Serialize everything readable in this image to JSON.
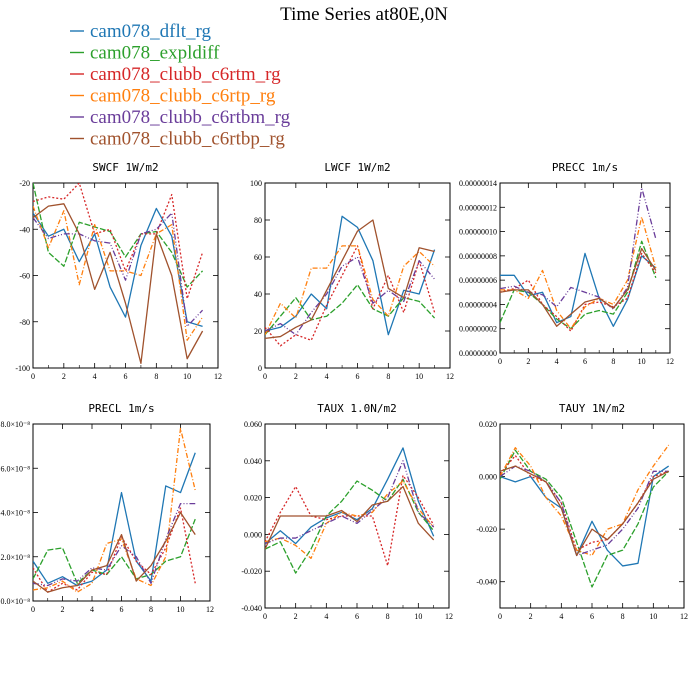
{
  "title": "Time Series at80E,0N",
  "legend": [
    {
      "label": "cam078_dflt_rg",
      "color": "#1f77b4"
    },
    {
      "label": "cam078_expldiff",
      "color": "#2ca02c"
    },
    {
      "label": "cam078_clubb_c6rtm_rg",
      "color": "#d62728"
    },
    {
      "label": "cam078_clubb_c6rtp_rg",
      "color": "#ff7f0e"
    },
    {
      "label": "cam078_clubb_c6rtbm_rg",
      "color": "#6a3d9a"
    },
    {
      "label": "cam078_clubb_c6rtbp_rg",
      "color": "#a0522d"
    }
  ],
  "chart_data": [
    {
      "type": "line",
      "title": "SWCF  1W/m2",
      "x": [
        0,
        1,
        2,
        3,
        4,
        5,
        6,
        7,
        8,
        9,
        10,
        11
      ],
      "xlim": [
        0,
        12
      ],
      "xticks": [
        0,
        2,
        4,
        6,
        8,
        10,
        12
      ],
      "ylim": [
        -100,
        -20
      ],
      "yticks": [
        -100,
        -80,
        -60,
        -40,
        -20
      ],
      "yticklabels": [
        "-100",
        "-80",
        "-60",
        "-40",
        "-20"
      ],
      "series": [
        {
          "values": [
            -33,
            -43,
            -40,
            -54,
            -42,
            -65,
            -78,
            -47,
            -31,
            -43,
            -80,
            -82
          ]
        },
        {
          "values": [
            -20,
            -50,
            -56,
            -37,
            -39,
            -41,
            -52,
            -42,
            -41,
            -50,
            -65,
            -58
          ]
        },
        {
          "values": [
            -28,
            -26,
            -27,
            -20,
            -42,
            -40,
            -58,
            -42,
            -42,
            -25,
            -70,
            -50
          ]
        },
        {
          "values": [
            -30,
            -48,
            -32,
            -64,
            -38,
            -58,
            -58,
            -60,
            -42,
            -38,
            -88,
            -78
          ]
        },
        {
          "values": [
            -35,
            -44,
            -42,
            -42,
            -45,
            -46,
            -62,
            -42,
            -40,
            -33,
            -82,
            -75
          ]
        },
        {
          "values": [
            -35,
            -30,
            -29,
            -42,
            -66,
            -50,
            -72,
            -98,
            -42,
            -60,
            -96,
            -84
          ]
        }
      ]
    },
    {
      "type": "line",
      "title": "LWCF  1W/m2",
      "x": [
        0,
        1,
        2,
        3,
        4,
        5,
        6,
        7,
        8,
        9,
        10,
        11
      ],
      "xlim": [
        0,
        12
      ],
      "xticks": [
        0,
        2,
        4,
        6,
        8,
        10,
        12
      ],
      "ylim": [
        0,
        100
      ],
      "yticks": [
        0,
        20,
        40,
        60,
        80,
        100
      ],
      "yticklabels": [
        "0",
        "20",
        "40",
        "60",
        "80",
        "100"
      ],
      "series": [
        {
          "values": [
            20,
            22,
            28,
            40,
            32,
            82,
            76,
            58,
            18,
            42,
            40,
            64
          ]
        },
        {
          "values": [
            18,
            28,
            38,
            26,
            28,
            35,
            45,
            32,
            28,
            38,
            36,
            27
          ]
        },
        {
          "values": [
            22,
            12,
            18,
            15,
            34,
            50,
            66,
            32,
            50,
            30,
            58,
            30
          ]
        },
        {
          "values": [
            18,
            35,
            27,
            54,
            54,
            66,
            66,
            37,
            28,
            55,
            63,
            55
          ]
        },
        {
          "values": [
            20,
            24,
            18,
            30,
            40,
            55,
            60,
            35,
            42,
            36,
            58,
            48
          ]
        },
        {
          "values": [
            16,
            17,
            22,
            26,
            42,
            58,
            74,
            80,
            43,
            38,
            65,
            63
          ]
        }
      ]
    },
    {
      "type": "line",
      "title": "PRECC  1m/s",
      "x": [
        0,
        1,
        2,
        3,
        4,
        5,
        6,
        7,
        8,
        9,
        10,
        11
      ],
      "xlim": [
        0,
        12
      ],
      "xticks": [
        0,
        2,
        4,
        6,
        8,
        10,
        12
      ],
      "ylim": [
        0,
        1.4e-07
      ],
      "yticks": [
        0,
        2e-08,
        4e-08,
        6e-08,
        8e-08,
        1e-07,
        1.2e-07,
        1.4e-07
      ],
      "yticklabels": [
        "0.00000000",
        "0.00000002",
        "0.00000004",
        "0.00000006",
        "0.00000008",
        "0.00000010",
        "0.00000012",
        "0.00000014"
      ],
      "series": [
        {
          "values": [
            6.4e-08,
            6.4e-08,
            4.7e-08,
            5e-08,
            2.5e-08,
            3e-08,
            8.2e-08,
            4.5e-08,
            2.2e-08,
            4.4e-08,
            8e-08,
            7e-08
          ]
        },
        {
          "values": [
            2.5e-08,
            5.2e-08,
            5e-08,
            4e-08,
            2.8e-08,
            2e-08,
            3.2e-08,
            3.5e-08,
            3.2e-08,
            5e-08,
            9.2e-08,
            6.2e-08
          ]
        },
        {
          "values": [
            5e-08,
            5.3e-08,
            6e-08,
            4e-08,
            3e-08,
            1.8e-08,
            4e-08,
            4.2e-08,
            3.8e-08,
            4.5e-08,
            8.2e-08,
            6.6e-08
          ]
        },
        {
          "values": [
            5.2e-08,
            5.2e-08,
            4.5e-08,
            6.8e-08,
            3.5e-08,
            2e-08,
            3.8e-08,
            4.5e-08,
            4e-08,
            6e-08,
            1.12e-07,
            7e-08
          ]
        },
        {
          "values": [
            5.3e-08,
            5.5e-08,
            5e-08,
            4.8e-08,
            3.8e-08,
            5.4e-08,
            5e-08,
            4.6e-08,
            3.6e-08,
            5.4e-08,
            1.36e-07,
            9.4e-08
          ]
        },
        {
          "values": [
            5e-08,
            5.2e-08,
            5.2e-08,
            4e-08,
            2.2e-08,
            3.2e-08,
            4.2e-08,
            4.5e-08,
            3.7e-08,
            5.2e-08,
            8.6e-08,
            6.8e-08
          ]
        }
      ]
    },
    {
      "type": "line",
      "title": "PRECL  1m/s",
      "x": [
        0,
        1,
        2,
        3,
        4,
        5,
        6,
        7,
        8,
        9,
        10,
        11
      ],
      "xlim": [
        0,
        12
      ],
      "xticks": [
        0,
        2,
        4,
        6,
        8,
        10,
        12
      ],
      "ylim": [
        0,
        8e-08
      ],
      "yticks": [
        0,
        2e-08,
        4e-08,
        6e-08,
        8e-08
      ],
      "yticklabels": [
        "0.0×10⁻⁸",
        "2.0×10⁻⁸",
        "4.0×10⁻⁸",
        "6.0×10⁻⁸",
        "8.0×10⁻⁸"
      ],
      "series": [
        {
          "values": [
            1.8e-08,
            8e-09,
            1.1e-08,
            7e-09,
            9e-09,
            1.4e-08,
            4.9e-08,
            1.8e-08,
            9e-09,
            5.2e-08,
            4.9e-08,
            6.7e-08
          ]
        },
        {
          "values": [
            1e-08,
            2.3e-08,
            2.4e-08,
            8e-09,
            1.4e-08,
            1.2e-08,
            2e-08,
            1e-08,
            1.2e-08,
            1.8e-08,
            2e-08,
            3.7e-08
          ]
        },
        {
          "values": [
            1.5e-08,
            4e-09,
            8e-09,
            5e-09,
            1.3e-08,
            1.2e-08,
            2.9e-08,
            1.8e-08,
            1.2e-08,
            2.4e-08,
            4.2e-08,
            8e-09
          ]
        },
        {
          "values": [
            5e-09,
            6e-09,
            9e-09,
            4e-09,
            8e-09,
            2.6e-08,
            2.8e-08,
            1e-08,
            7e-09,
            2e-08,
            7.8e-08,
            5e-08
          ]
        },
        {
          "values": [
            8e-09,
            7e-09,
            1e-08,
            9e-09,
            1.5e-08,
            1.4e-08,
            2.5e-08,
            2e-08,
            8e-09,
            2.8e-08,
            4.4e-08,
            4.4e-08
          ]
        },
        {
          "values": [
            9e-09,
            4e-09,
            6e-09,
            7e-09,
            1.4e-08,
            1.6e-08,
            3e-08,
            9e-09,
            1.6e-08,
            2.7e-08,
            4e-08,
            3e-08
          ]
        }
      ]
    },
    {
      "type": "line",
      "title": "TAUX  1.0N/m2",
      "x": [
        0,
        1,
        2,
        3,
        4,
        5,
        6,
        7,
        8,
        9,
        10,
        11
      ],
      "xlim": [
        0,
        12
      ],
      "xticks": [
        0,
        2,
        4,
        6,
        8,
        10,
        12
      ],
      "ylim": [
        -0.04,
        0.06
      ],
      "yticks": [
        -0.04,
        -0.02,
        0,
        0.02,
        0.04,
        0.06
      ],
      "yticklabels": [
        "-0.040",
        "-0.020",
        "0.000",
        "0.020",
        "0.040",
        "0.060"
      ],
      "series": [
        {
          "values": [
            -0.005,
            0.002,
            -0.005,
            0.004,
            0.009,
            0.012,
            0.008,
            0.014,
            0.03,
            0.047,
            0.018,
            -0.001
          ]
        },
        {
          "values": [
            -0.008,
            -0.004,
            -0.021,
            -0.008,
            0.01,
            0.018,
            0.029,
            0.024,
            0.018,
            0.03,
            0.012,
            0.002
          ]
        },
        {
          "values": [
            -0.004,
            0.012,
            0.026,
            0.01,
            0.008,
            0.01,
            0.01,
            0.01,
            -0.017,
            0.032,
            0.02,
            0.005
          ]
        },
        {
          "values": [
            -0.004,
            -0.002,
            -0.006,
            -0.013,
            0.006,
            0.012,
            0.01,
            0.012,
            0.022,
            0.029,
            0.014,
            0.004
          ]
        },
        {
          "values": [
            -0.005,
            -0.002,
            -0.002,
            0.002,
            0.006,
            0.01,
            0.006,
            0.013,
            0.02,
            0.04,
            0.012,
            0.004
          ]
        },
        {
          "values": [
            -0.008,
            0.01,
            0.01,
            0.01,
            0.01,
            0.013,
            0.007,
            0.016,
            0.018,
            0.026,
            0.006,
            -0.003
          ]
        }
      ]
    },
    {
      "type": "line",
      "title": "TAUY  1N/m2",
      "x": [
        0,
        1,
        2,
        3,
        4,
        5,
        6,
        7,
        8,
        9,
        10,
        11
      ],
      "xlim": [
        0,
        12
      ],
      "xticks": [
        0,
        2,
        4,
        6,
        8,
        10,
        12
      ],
      "ylim": [
        -0.05,
        0.02
      ],
      "yticks": [
        -0.04,
        -0.02,
        0,
        0.02
      ],
      "yticklabels": [
        "-0.040",
        "-0.020",
        "0.000",
        "0.020"
      ],
      "series": [
        {
          "values": [
            0.0,
            -0.002,
            0.0,
            -0.008,
            -0.012,
            -0.03,
            -0.017,
            -0.028,
            -0.034,
            -0.033,
            0.0,
            0.004
          ]
        },
        {
          "values": [
            -0.001,
            0.01,
            0.002,
            -0.001,
            -0.008,
            -0.025,
            -0.042,
            -0.03,
            -0.028,
            -0.018,
            -0.004,
            0.002
          ]
        },
        {
          "values": [
            0.001,
            0.008,
            0.0,
            -0.002,
            -0.01,
            -0.028,
            -0.025,
            -0.024,
            -0.018,
            -0.01,
            0.0,
            0.002
          ]
        },
        {
          "values": [
            0.0,
            0.011,
            0.004,
            -0.008,
            -0.015,
            -0.028,
            -0.03,
            -0.02,
            -0.018,
            -0.005,
            0.004,
            0.012
          ]
        },
        {
          "values": [
            0.0,
            0.004,
            0.002,
            -0.002,
            -0.01,
            -0.03,
            -0.028,
            -0.026,
            -0.02,
            -0.012,
            0.002,
            0.002
          ]
        },
        {
          "values": [
            0.002,
            0.004,
            0.001,
            -0.002,
            -0.012,
            -0.03,
            -0.02,
            -0.024,
            -0.018,
            -0.01,
            -0.001,
            0.002
          ]
        }
      ]
    }
  ]
}
